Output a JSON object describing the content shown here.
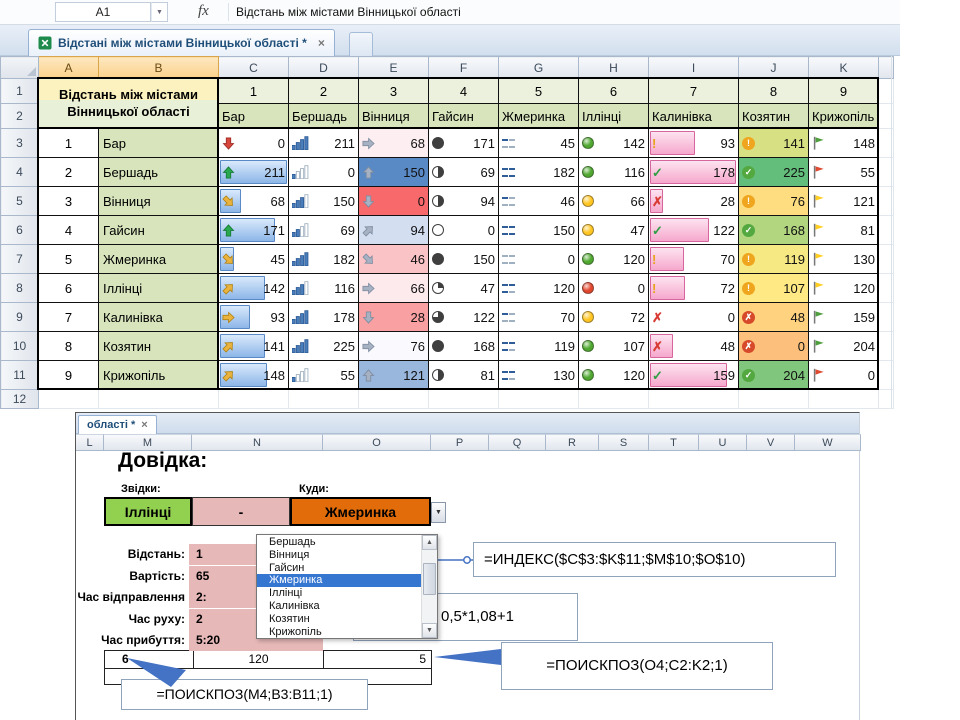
{
  "app": {
    "name_box": "A1",
    "fx_label": "fx",
    "formula": "Відстань між містами Вінницької області",
    "doc_tab": "Відстані між містами Вінницької області *"
  },
  "sheet1": {
    "col_headers": [
      "A",
      "B",
      "C",
      "D",
      "E",
      "F",
      "G",
      "H",
      "I",
      "J",
      "K"
    ],
    "title_cell": "Відстань між містами Вінницької області",
    "col_indices": [
      "1",
      "2",
      "3",
      "4",
      "5",
      "6",
      "7",
      "8",
      "9"
    ],
    "cities": [
      "Бар",
      "Бершадь",
      "Вінниця",
      "Гайсин",
      "Жмеринка",
      "Іллінці",
      "Калинівка",
      "Козятин",
      "Крижопіль"
    ],
    "matrix": [
      [
        0,
        211,
        68,
        171,
        45,
        142,
        93,
        141,
        148
      ],
      [
        211,
        0,
        150,
        69,
        182,
        116,
        178,
        225,
        55
      ],
      [
        68,
        150,
        0,
        94,
        46,
        66,
        28,
        76,
        121
      ],
      [
        171,
        69,
        94,
        0,
        150,
        47,
        122,
        168,
        81
      ],
      [
        45,
        182,
        46,
        150,
        0,
        120,
        70,
        119,
        130
      ],
      [
        142,
        116,
        66,
        47,
        120,
        0,
        72,
        107,
        120
      ],
      [
        93,
        178,
        28,
        122,
        70,
        72,
        0,
        48,
        159
      ],
      [
        141,
        225,
        76,
        168,
        119,
        107,
        48,
        0,
        204
      ],
      [
        148,
        55,
        121,
        81,
        130,
        120,
        159,
        204,
        0
      ]
    ],
    "column_icon_sets": [
      "colored-arrows+blue-databar",
      "rating-bars",
      "red-blue-colorscale+gray-arrows",
      "pie-quarters",
      "quadrant-squares",
      "traffic-lights",
      "symbols+pink-databar",
      "circled-symbols+yellow-green-colorscale",
      "flags"
    ]
  },
  "sheet2": {
    "tab": "області *",
    "col_headers": [
      "L",
      "M",
      "N",
      "O",
      "P",
      "Q",
      "R",
      "S",
      "T",
      "U",
      "V",
      "W"
    ],
    "title": "Довідка:",
    "from_label": "Звідки:",
    "to_label": "Куди:",
    "from_city": "Іллінці",
    "separator": "-",
    "to_city": "Жмеринка",
    "fields": [
      {
        "label": "Відстань:",
        "value": "1"
      },
      {
        "label": "Вартість:",
        "value": "65"
      },
      {
        "label": "Час відправлення",
        "value": "2:"
      },
      {
        "label": "Час руху:",
        "value": "2"
      },
      {
        "label": "Час прибуття:",
        "value": "5:20"
      }
    ],
    "dropdown": {
      "items": [
        "Бершадь",
        "Вінниця",
        "Гайсин",
        "Жмеринка",
        "Іллінці",
        "Калинівка",
        "Козятин",
        "Крижопіль"
      ],
      "selected_index": 3
    },
    "result_cells": {
      "row_index": "6",
      "distance": "120",
      "col_index": "5"
    },
    "callouts": [
      {
        "id": "index",
        "text": "=ИНДЕКС($C$3:$K$11;$M$10;$O$10)"
      },
      {
        "id": "partial",
        "text": "0,5*1,08+1"
      },
      {
        "id": "match_col",
        "text": "=ПОИСКПОЗ(O4;C2:K2;1)"
      },
      {
        "id": "match_row",
        "text": "=ПОИСКПОЗ(M4;B3:B11;1)"
      }
    ]
  },
  "icons": {
    "close": "×",
    "name_box_arrow": "▼",
    "combo_arrow": "▼",
    "scroll_up": "▲",
    "scroll_down": "▼"
  },
  "colors": {
    "accent_blue": "#4472c4",
    "from_cell_green": "#92d050",
    "to_cell_orange": "#e26b0a",
    "value_cell_pink": "#e6b8b7",
    "selection_blue": "#3576d1"
  }
}
